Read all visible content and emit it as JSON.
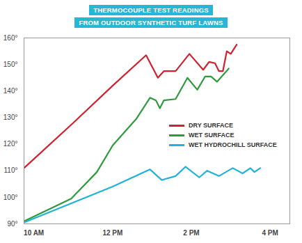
{
  "chart_data": {
    "type": "line",
    "title": "THERMOCOUPLE TEST READINGS",
    "subtitle": "FROM OUTDOOR SYNTHETIC TURF LAWNS",
    "xlim": [
      9.75,
      16.5
    ],
    "xticks": [
      {
        "value": 10,
        "label": "10 AM"
      },
      {
        "value": 12,
        "label": "12 PM"
      },
      {
        "value": 14,
        "label": "2 PM"
      },
      {
        "value": 16,
        "label": "4 PM"
      }
    ],
    "ylim": [
      90,
      160
    ],
    "yticks": [
      {
        "value": 90,
        "label": "90°"
      },
      {
        "value": 100,
        "label": "100°"
      },
      {
        "value": 110,
        "label": "110°"
      },
      {
        "value": 120,
        "label": "120°"
      },
      {
        "value": 130,
        "label": "130°"
      },
      {
        "value": 140,
        "label": "140°"
      },
      {
        "value": 150,
        "label": "150°"
      },
      {
        "value": 160,
        "label": "160°"
      }
    ],
    "grid": false,
    "legend": "right",
    "series": [
      {
        "name": "DRY SURFACE",
        "color": "#d2202f",
        "x": [
          9.75,
          11,
          12,
          12.85,
          13.15,
          13.3,
          13.6,
          13.95,
          14.3,
          14.45,
          14.6,
          14.7,
          14.8,
          14.9,
          15.0,
          15.15
        ],
        "values": [
          111,
          128,
          142,
          153.5,
          145,
          147.5,
          147.5,
          154,
          148,
          151,
          150.5,
          147.5,
          147.5,
          155,
          154,
          157.5
        ]
      },
      {
        "name": "WET SURFACE",
        "color": "#2e9a3e",
        "x": [
          9.75,
          10.95,
          11.6,
          12,
          12.6,
          12.95,
          13.1,
          13.2,
          13.3,
          13.6,
          13.9,
          14.15,
          14.35,
          14.5,
          14.65,
          14.8,
          14.95
        ],
        "values": [
          91,
          99.5,
          109.5,
          119.5,
          129.5,
          137.5,
          136.5,
          133.5,
          136.5,
          137,
          145,
          140.5,
          145.5,
          145.5,
          143.5,
          146,
          148.5
        ]
      },
      {
        "name": "WET HYDROCHILL SURFACE",
        "color": "#1fb3d9",
        "x": [
          9.75,
          12,
          12.95,
          13.25,
          13.6,
          13.85,
          14.2,
          14.4,
          14.7,
          15.05,
          15.3,
          15.5,
          15.6,
          15.75
        ],
        "values": [
          90.5,
          104,
          110.5,
          106.5,
          108,
          111.5,
          107.5,
          110,
          108,
          111,
          109,
          111,
          109.5,
          111
        ]
      }
    ]
  }
}
